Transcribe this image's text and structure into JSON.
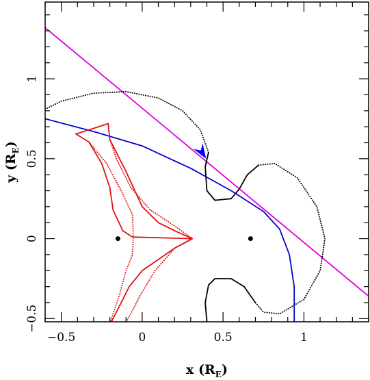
{
  "chart_data": {
    "type": "line",
    "xlabel": {
      "main": "x (R",
      "sub": "E",
      "close": ")"
    },
    "ylabel": {
      "main": "y (R",
      "sub": "E",
      "close": ")"
    },
    "xlim": [
      -0.6,
      1.4
    ],
    "ylim": [
      -0.52,
      1.48
    ],
    "x_ticks": [
      -0.5,
      0,
      0.5,
      1
    ],
    "x_tick_labels": [
      "−0.5",
      "0",
      "0.5",
      "1"
    ],
    "x_minor_step": 0.1,
    "y_ticks": [
      -0.5,
      0,
      0.5,
      1
    ],
    "y_tick_labels": [
      "−0.5",
      "0",
      "0.5",
      "1"
    ],
    "y_minor_step": 0.1,
    "grid": false,
    "colors": {
      "caustic": "#dd1111",
      "critical": "#000000",
      "source_trajectory": "#dd00dd",
      "lens_trajectory": "#0000cc",
      "arrow": "#0000ff",
      "lens": "#000000"
    },
    "lens_positions": [
      {
        "x": -0.15,
        "y": 0
      },
      {
        "x": 0.67,
        "y": 0
      }
    ],
    "series": [
      {
        "style": "line",
        "color": "#dd00dd",
        "points": [
          [
            -0.6,
            1.32
          ],
          [
            1.4,
            -0.36
          ]
        ]
      },
      {
        "style": "line",
        "color": "#0000cc",
        "points": [
          [
            -0.6,
            0.75
          ],
          [
            -0.3,
            0.67
          ],
          [
            0.0,
            0.58
          ],
          [
            0.3,
            0.44
          ],
          [
            0.55,
            0.3
          ],
          [
            0.75,
            0.17
          ],
          [
            0.85,
            0.06
          ],
          [
            0.91,
            -0.1
          ],
          [
            0.94,
            -0.3
          ],
          [
            0.94,
            -0.52
          ]
        ]
      },
      {
        "style": "line",
        "color": "#dd1111",
        "points": [
          [
            -0.41,
            0.655
          ],
          [
            -0.33,
            0.605
          ],
          [
            -0.25,
            0.47
          ],
          [
            -0.2,
            0.32
          ],
          [
            -0.18,
            0.18
          ],
          [
            -0.12,
            0.05
          ],
          [
            -0.06,
            0.01
          ],
          [
            0.31,
            0.0
          ],
          [
            0.2,
            -0.06
          ],
          [
            0.0,
            -0.2
          ],
          [
            -0.08,
            -0.3
          ],
          [
            -0.13,
            -0.4
          ],
          [
            -0.18,
            -0.5
          ],
          [
            -0.23,
            -0.6
          ]
        ]
      },
      {
        "style": "line",
        "color": "#dd1111",
        "points": [
          [
            -0.41,
            0.655
          ],
          [
            -0.3,
            0.69
          ],
          [
            -0.21,
            0.72
          ],
          [
            -0.2,
            0.62
          ],
          [
            -0.1,
            0.42
          ],
          [
            0.0,
            0.2
          ],
          [
            0.1,
            0.1
          ],
          [
            0.2,
            0.05
          ],
          [
            0.31,
            0.0
          ]
        ]
      },
      {
        "style": "dotted",
        "color": "#dd1111",
        "points": [
          [
            -0.33,
            0.605
          ],
          [
            -0.22,
            0.47
          ],
          [
            -0.13,
            0.3
          ],
          [
            -0.06,
            0.15
          ],
          [
            -0.055,
            0.01
          ],
          [
            -0.06,
            -0.1
          ],
          [
            -0.1,
            -0.2
          ],
          [
            -0.14,
            -0.35
          ],
          [
            -0.19,
            -0.5
          ],
          [
            -0.23,
            -0.6
          ]
        ]
      },
      {
        "style": "dotted",
        "color": "#dd1111",
        "points": [
          [
            -0.2,
            0.62
          ],
          [
            -0.16,
            0.5
          ],
          [
            -0.07,
            0.32
          ],
          [
            0.05,
            0.18
          ],
          [
            0.2,
            0.08
          ],
          [
            0.31,
            0.0
          ],
          [
            0.2,
            -0.06
          ],
          [
            0.08,
            -0.2
          ],
          [
            -0.01,
            -0.35
          ],
          [
            -0.06,
            -0.45
          ],
          [
            -0.1,
            -0.52
          ]
        ]
      },
      {
        "style": "dotted",
        "color": "#000000",
        "points": [
          [
            -0.6,
            0.81
          ],
          [
            -0.5,
            0.86
          ],
          [
            -0.3,
            0.91
          ],
          [
            -0.1,
            0.92
          ],
          [
            0.1,
            0.88
          ],
          [
            0.25,
            0.8
          ],
          [
            0.36,
            0.68
          ],
          [
            0.41,
            0.54
          ]
        ]
      },
      {
        "style": "line",
        "color": "#000000",
        "points": [
          [
            0.41,
            0.54
          ],
          [
            0.39,
            0.45
          ],
          [
            0.4,
            0.3
          ],
          [
            0.45,
            0.24
          ],
          [
            0.55,
            0.25
          ],
          [
            0.6,
            0.31
          ],
          [
            0.65,
            0.4
          ],
          [
            0.72,
            0.46
          ]
        ]
      },
      {
        "style": "dotted",
        "color": "#000000",
        "points": [
          [
            0.72,
            0.46
          ],
          [
            0.82,
            0.47
          ],
          [
            0.96,
            0.38
          ],
          [
            1.08,
            0.2
          ],
          [
            1.13,
            0.0
          ],
          [
            1.1,
            -0.2
          ],
          [
            1.0,
            -0.38
          ],
          [
            0.85,
            -0.47
          ],
          [
            0.75,
            -0.46
          ],
          [
            0.7,
            -0.4
          ]
        ]
      },
      {
        "style": "line",
        "color": "#000000",
        "points": [
          [
            0.7,
            -0.4
          ],
          [
            0.63,
            -0.3
          ],
          [
            0.55,
            -0.25
          ],
          [
            0.45,
            -0.25
          ],
          [
            0.41,
            -0.29
          ],
          [
            0.39,
            -0.4
          ],
          [
            0.4,
            -0.52
          ]
        ]
      }
    ],
    "arrow": {
      "tip": [
        0.395,
        0.5
      ],
      "from": [
        0.37,
        0.54
      ],
      "color": "#0000ff"
    }
  }
}
